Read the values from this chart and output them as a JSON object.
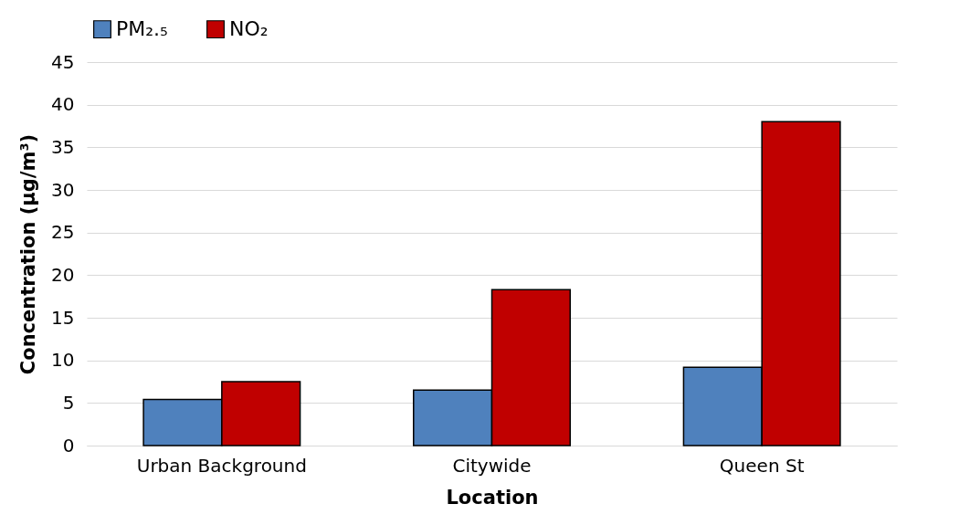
{
  "chart_data": {
    "type": "bar",
    "xlabel": "Location",
    "ylabel": "Concentration (µg/m³)",
    "categories": [
      "Urban Background",
      "Citywide",
      "Queen St"
    ],
    "series": [
      {
        "name": "PM₂.₅",
        "color": "#4f81bd",
        "values": [
          5.4,
          6.5,
          9.2
        ]
      },
      {
        "name": "NO₂",
        "color": "#c00000",
        "values": [
          7.5,
          18.3,
          38.0
        ]
      }
    ],
    "ylim": [
      0,
      45
    ],
    "yticks": [
      0,
      5,
      10,
      15,
      20,
      25,
      30,
      35,
      40,
      45
    ],
    "grid": "y",
    "legend": "top"
  }
}
